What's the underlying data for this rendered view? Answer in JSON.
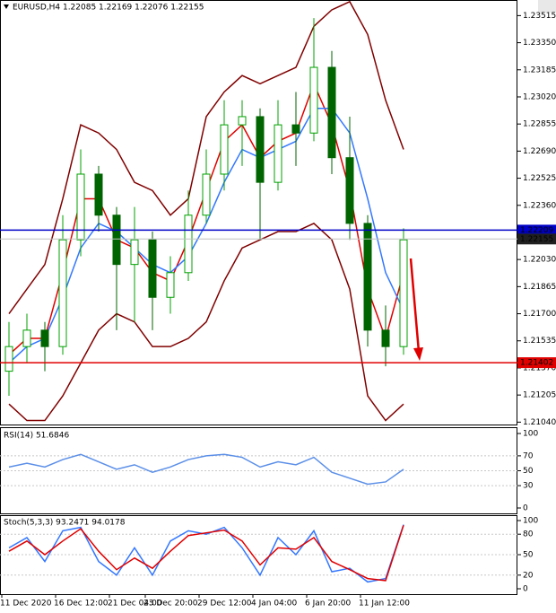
{
  "chart_data": [
    {
      "type": "candlestick",
      "title": "EURUSD,H4  1.22085 1.22169 1.22076 1.22155",
      "categories": [
        "11 Dec 2020",
        null,
        null,
        "16 Dec 12:00",
        null,
        null,
        "21 Dec 04:00",
        null,
        "23 Dec 20:00",
        null,
        null,
        "29 Dec 12:00",
        null,
        null,
        "4 Jan 04:00",
        null,
        null,
        "6 Jan 20:00",
        null,
        null,
        "11 Jan 12:00",
        null,
        null
      ],
      "open": [
        1.2135,
        1.215,
        1.216,
        1.215,
        1.2215,
        1.2255,
        1.223,
        1.22,
        1.2215,
        1.218,
        1.2195,
        1.223,
        1.2255,
        1.2285,
        1.229,
        1.225,
        1.2285,
        1.228,
        1.232,
        1.2265,
        1.2225,
        1.216,
        1.215
      ],
      "high": [
        1.2165,
        1.217,
        1.2165,
        1.223,
        1.227,
        1.226,
        1.2235,
        1.2235,
        1.222,
        1.2205,
        1.2245,
        1.227,
        1.23,
        1.23,
        1.2295,
        1.23,
        1.2305,
        1.235,
        1.233,
        1.229,
        1.223,
        1.2175,
        1.2222
      ],
      "low": [
        1.212,
        1.214,
        1.2135,
        1.2145,
        1.2205,
        1.222,
        1.216,
        1.2165,
        1.216,
        1.217,
        1.219,
        1.2225,
        1.2245,
        1.226,
        1.2215,
        1.2245,
        1.226,
        1.2275,
        1.2255,
        1.2215,
        1.215,
        1.2138,
        1.2145
      ],
      "close": [
        1.215,
        1.216,
        1.215,
        1.2215,
        1.2255,
        1.223,
        1.22,
        1.2215,
        1.218,
        1.2195,
        1.223,
        1.2255,
        1.2285,
        1.229,
        1.225,
        1.2285,
        1.228,
        1.232,
        1.2265,
        1.2225,
        1.216,
        1.215,
        1.2215
      ],
      "up_color": "#00a000",
      "down_color": "#006400",
      "series": [
        {
          "color": "#e00000",
          "values": [
            1.2145,
            1.2155,
            1.2155,
            1.2195,
            1.224,
            1.224,
            1.2215,
            1.221,
            1.2195,
            1.219,
            1.2215,
            1.2245,
            1.2275,
            1.2285,
            1.2265,
            1.2275,
            1.228,
            1.231,
            1.2285,
            1.2245,
            1.2185,
            1.2155,
            1.2195
          ]
        },
        {
          "color": "#3377ff",
          "values": [
            1.214,
            1.215,
            1.2155,
            1.218,
            1.221,
            1.2225,
            1.222,
            1.221,
            1.22,
            1.2195,
            1.2205,
            1.2225,
            1.225,
            1.227,
            1.2265,
            1.227,
            1.2275,
            1.2295,
            1.2295,
            1.228,
            1.224,
            1.2195,
            1.2172
          ]
        },
        {
          "color": "#800000",
          "values": [
            1.217,
            1.2185,
            1.22,
            1.224,
            1.2285,
            1.228,
            1.227,
            1.225,
            1.2245,
            1.223,
            1.224,
            1.229,
            1.2305,
            1.2315,
            1.231,
            1.2315,
            1.232,
            1.2345,
            1.2355,
            1.236,
            1.234,
            1.23,
            1.227
          ]
        },
        {
          "color": "#800000",
          "values": [
            1.2115,
            1.2105,
            1.2105,
            1.212,
            1.214,
            1.216,
            1.217,
            1.2165,
            1.215,
            1.215,
            1.2155,
            1.2165,
            1.219,
            1.221,
            1.2215,
            1.222,
            1.222,
            1.2225,
            1.2215,
            1.2185,
            1.212,
            1.2105,
            1.2115
          ]
        }
      ],
      "hlines": [
        {
          "value": 1.22209,
          "color": "#0000c8",
          "label_bg": "#0000c8"
        },
        {
          "value": 1.22155,
          "color": "#c0c0c0",
          "label_bg": "#202020"
        },
        {
          "value": 1.21402,
          "color": "#e00000",
          "label_bg": "#e00000"
        }
      ],
      "ylim": [
        1.2102,
        1.2361
      ],
      "yticks": [
        1.23515,
        {
          "value": 1.2335,
          "label": "1.23350"
        },
        1.23185,
        {
          "value": 1.2302,
          "label": "1.23020"
        },
        1.22855,
        {
          "value": 1.2269,
          "label": "1.22690"
        },
        1.22525,
        {
          "value": 1.2236,
          "label": "1.22360"
        },
        {
          "value": 1.2203,
          "label": "1.22030"
        },
        1.21865,
        {
          "value": 1.217,
          "label": "1.21700"
        },
        1.21535,
        {
          "value": 1.2137,
          "label": "1.21370"
        },
        1.21205,
        {
          "value": 1.2104,
          "label": "1.21040"
        }
      ]
    },
    {
      "type": "line",
      "title": "RSI(14) 51.6846",
      "series": [
        {
          "color": "#5b8fe8",
          "values": [
            55,
            60,
            55,
            65,
            72,
            62,
            52,
            58,
            48,
            55,
            65,
            70,
            72,
            68,
            55,
            62,
            58,
            68,
            48,
            40,
            32,
            35,
            52
          ]
        }
      ],
      "ylim": [
        0,
        100
      ],
      "yticks": [
        100,
        70,
        50,
        30,
        0
      ]
    },
    {
      "type": "line",
      "title": "Stoch(5,3,3) 93.2471 94.0178",
      "series": [
        {
          "color": "#3377ff",
          "values": [
            60,
            75,
            40,
            85,
            90,
            40,
            20,
            60,
            20,
            70,
            85,
            80,
            90,
            60,
            20,
            75,
            50,
            85,
            25,
            30,
            10,
            15,
            94
          ]
        },
        {
          "color": "#e00000",
          "values": [
            55,
            70,
            50,
            70,
            88,
            55,
            28,
            45,
            30,
            55,
            78,
            82,
            86,
            70,
            35,
            60,
            58,
            75,
            40,
            28,
            15,
            12,
            93
          ]
        }
      ],
      "ylim": [
        0,
        100
      ],
      "yticks": [
        100,
        80,
        50,
        20,
        0
      ]
    }
  ]
}
